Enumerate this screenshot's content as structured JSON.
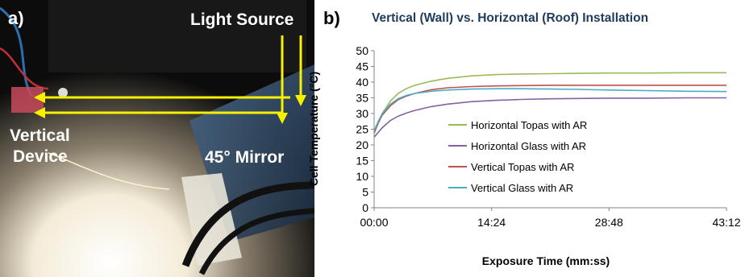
{
  "panel_a": {
    "letter": "a)",
    "labels": {
      "light_source": "Light Source",
      "vertical_device_line1": "Vertical",
      "vertical_device_line2": "Device",
      "mirror": "45° Mirror"
    },
    "colors": {
      "arrow": "#f5f000",
      "background": "#0a0a0a"
    }
  },
  "panel_b": {
    "letter": "b)",
    "chart_data": {
      "type": "line",
      "title": "Vertical (Wall) vs. Horizontal (Roof) Installation",
      "xlabel": "Exposure Time (mm:ss)",
      "ylabel": "Cell Temperature (°C)",
      "x_unit": "seconds",
      "xlim": [
        0,
        2592
      ],
      "ylim": [
        0,
        50
      ],
      "y_ticks": [
        0,
        5,
        10,
        15,
        20,
        25,
        30,
        35,
        40,
        45,
        50
      ],
      "x_ticks": [
        {
          "value": 0,
          "label": "00:00"
        },
        {
          "value": 864,
          "label": "14:24"
        },
        {
          "value": 1728,
          "label": "28:48"
        },
        {
          "value": 2592,
          "label": "43:12"
        }
      ],
      "grid": false,
      "legend": "center",
      "x": [
        0,
        30,
        60,
        120,
        180,
        240,
        300,
        420,
        540,
        720,
        900,
        1080,
        1296,
        1500,
        1728,
        2000,
        2300,
        2592
      ],
      "series": [
        {
          "name": "Horizontal Topas with AR",
          "color": "#9bbb59",
          "values": [
            23.5,
            27,
            30,
            34,
            36.5,
            38,
            39,
            40.3,
            41.2,
            42,
            42.4,
            42.6,
            42.7,
            42.8,
            42.9,
            42.9,
            43,
            43
          ]
        },
        {
          "name": "Horizontal Glass with AR",
          "color": "#8064a2",
          "values": [
            22.5,
            24,
            25.5,
            27.8,
            29.2,
            30.2,
            31,
            32.2,
            33,
            33.8,
            34.2,
            34.5,
            34.7,
            34.8,
            34.9,
            34.9,
            35,
            35
          ]
        },
        {
          "name": "Vertical Topas with AR",
          "color": "#c0504d",
          "values": [
            24,
            27,
            29.5,
            32.5,
            34.5,
            35.6,
            36.4,
            37.6,
            38.2,
            38.6,
            38.8,
            38.9,
            39,
            39,
            39,
            39,
            39,
            39
          ]
        },
        {
          "name": "Vertical Glass with AR",
          "color": "#4bacc6",
          "values": [
            24.5,
            27.5,
            30,
            33,
            34.8,
            35.8,
            36.4,
            37.1,
            37.5,
            37.8,
            37.9,
            37.9,
            37.8,
            37.7,
            37.5,
            37.3,
            37.1,
            37
          ]
        }
      ]
    }
  }
}
